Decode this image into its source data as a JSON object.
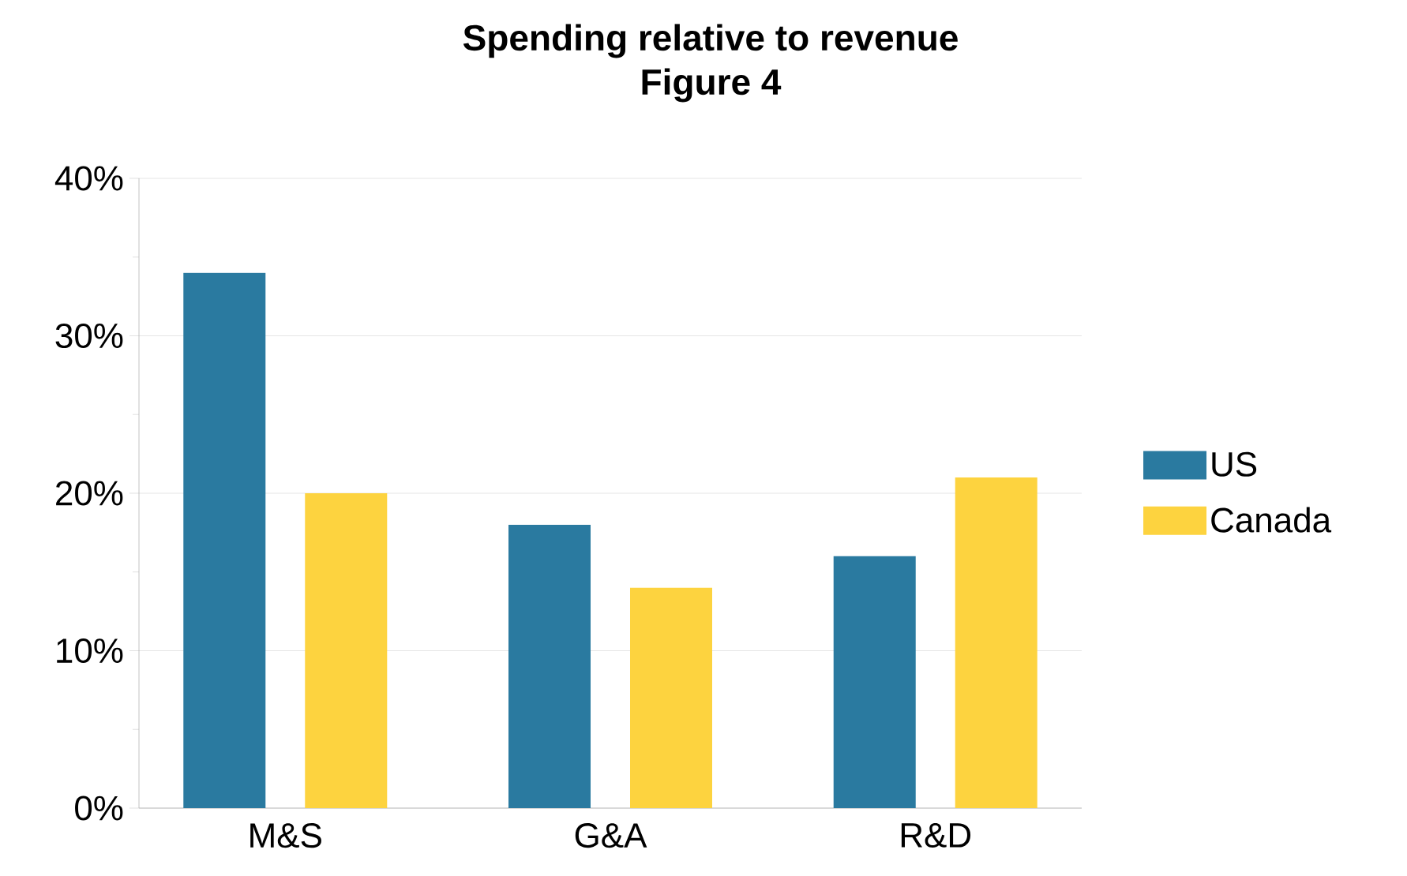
{
  "chart_data": {
    "type": "bar",
    "title": "Spending relative to revenue",
    "subtitle": "Figure 4",
    "categories": [
      "M&S",
      "G&A",
      "R&D"
    ],
    "series": [
      {
        "name": "US",
        "color": "#2a7aa0",
        "values": [
          34,
          18,
          16
        ]
      },
      {
        "name": "Canada",
        "color": "#fdd33f",
        "values": [
          20,
          14,
          21
        ]
      }
    ],
    "ylim": [
      0,
      40
    ],
    "yticks": [
      {
        "value": 0,
        "label": "0%"
      },
      {
        "value": 10,
        "label": "10%"
      },
      {
        "value": 20,
        "label": "20%"
      },
      {
        "value": 30,
        "label": "30%"
      },
      {
        "value": 40,
        "label": "40%"
      }
    ],
    "grid": "y",
    "legend": "right"
  }
}
